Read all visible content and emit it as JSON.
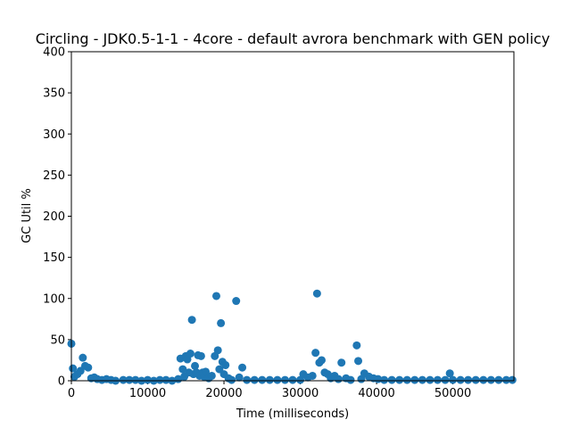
{
  "chart_data": {
    "type": "scatter",
    "title": "Circling - JDK0.5-1-1 - 4core -  default avrora benchmark with GEN policy",
    "xlabel": "Time (milliseconds)",
    "ylabel": "GC Util %",
    "xlim": [
      0,
      58000
    ],
    "ylim": [
      0,
      400
    ],
    "xticks": [
      0,
      10000,
      20000,
      30000,
      40000,
      50000
    ],
    "yticks": [
      0,
      50,
      100,
      150,
      200,
      250,
      300,
      350,
      400
    ],
    "grid": false,
    "marker_color": "#1f77b4",
    "x": [
      0,
      200,
      400,
      800,
      1200,
      1500,
      1800,
      2200,
      2600,
      3000,
      3400,
      4000,
      4600,
      5200,
      5800,
      6800,
      7600,
      8400,
      9200,
      10000,
      10800,
      11600,
      12400,
      13200,
      14000,
      14300,
      14600,
      14800,
      15000,
      15200,
      15400,
      15600,
      15800,
      16000,
      16200,
      16400,
      16600,
      16800,
      17000,
      17200,
      17400,
      17600,
      18000,
      18400,
      18800,
      19000,
      19200,
      19400,
      19600,
      19800,
      20000,
      20200,
      20600,
      21000,
      21600,
      22000,
      22400,
      23000,
      24000,
      25000,
      26000,
      27000,
      28000,
      29000,
      30000,
      30400,
      31000,
      31600,
      32000,
      32200,
      32500,
      32800,
      33200,
      33600,
      34000,
      34500,
      35000,
      35400,
      36000,
      36600,
      37400,
      37600,
      38000,
      38400,
      39000,
      39600,
      40200,
      41000,
      42000,
      43000,
      44000,
      45000,
      46000,
      47000,
      48000,
      49000,
      49600,
      50000,
      51000,
      52000,
      53000,
      54000,
      55000,
      56000,
      57000,
      57800
    ],
    "y": [
      45,
      15,
      5,
      8,
      12,
      28,
      18,
      16,
      3,
      4,
      2,
      1,
      2,
      1,
      0,
      1,
      1,
      1,
      0,
      1,
      0,
      1,
      1,
      0,
      2,
      27,
      14,
      5,
      30,
      26,
      10,
      33,
      74,
      8,
      18,
      10,
      31,
      6,
      30,
      10,
      5,
      11,
      3,
      6,
      30,
      103,
      37,
      14,
      70,
      23,
      8,
      19,
      3,
      1,
      97,
      4,
      16,
      1,
      1,
      1,
      1,
      1,
      1,
      1,
      1,
      8,
      4,
      6,
      34,
      106,
      22,
      25,
      10,
      8,
      3,
      6,
      2,
      22,
      3,
      1,
      43,
      24,
      2,
      9,
      5,
      3,
      2,
      1,
      1,
      1,
      1,
      1,
      1,
      1,
      1,
      1,
      9,
      1,
      1,
      1,
      1,
      1,
      1,
      1,
      1,
      1
    ]
  }
}
